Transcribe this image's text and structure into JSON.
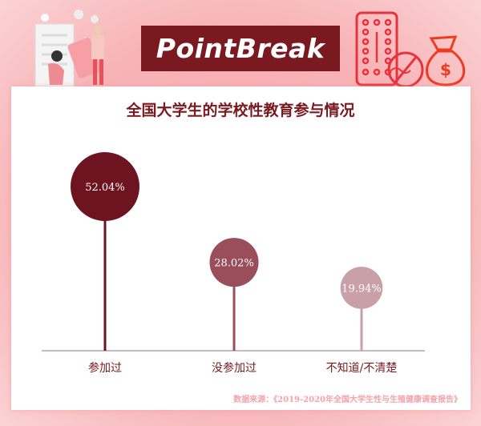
{
  "brand": "PointBreak",
  "chart_data": {
    "type": "lollipop",
    "title": "全国大学生的学校性教育参与情况",
    "categories": [
      "参加过",
      "没参加过",
      "不知道/不清楚"
    ],
    "values": [
      52.04,
      28.02,
      19.94
    ],
    "value_labels": [
      "52.04%",
      "28.02%",
      "19.94%"
    ],
    "colors": [
      "#6e1420",
      "#9a4d5b",
      "#caa0a8"
    ],
    "ylim": [
      0,
      60
    ],
    "grid": false,
    "source": "数据来源：《2019-2020年全国大学生性与生殖健康调查报告》"
  },
  "icons": [
    "illustration-people-pills",
    "pill-blister-icon",
    "no-sperm-icon",
    "money-bag-icon"
  ]
}
